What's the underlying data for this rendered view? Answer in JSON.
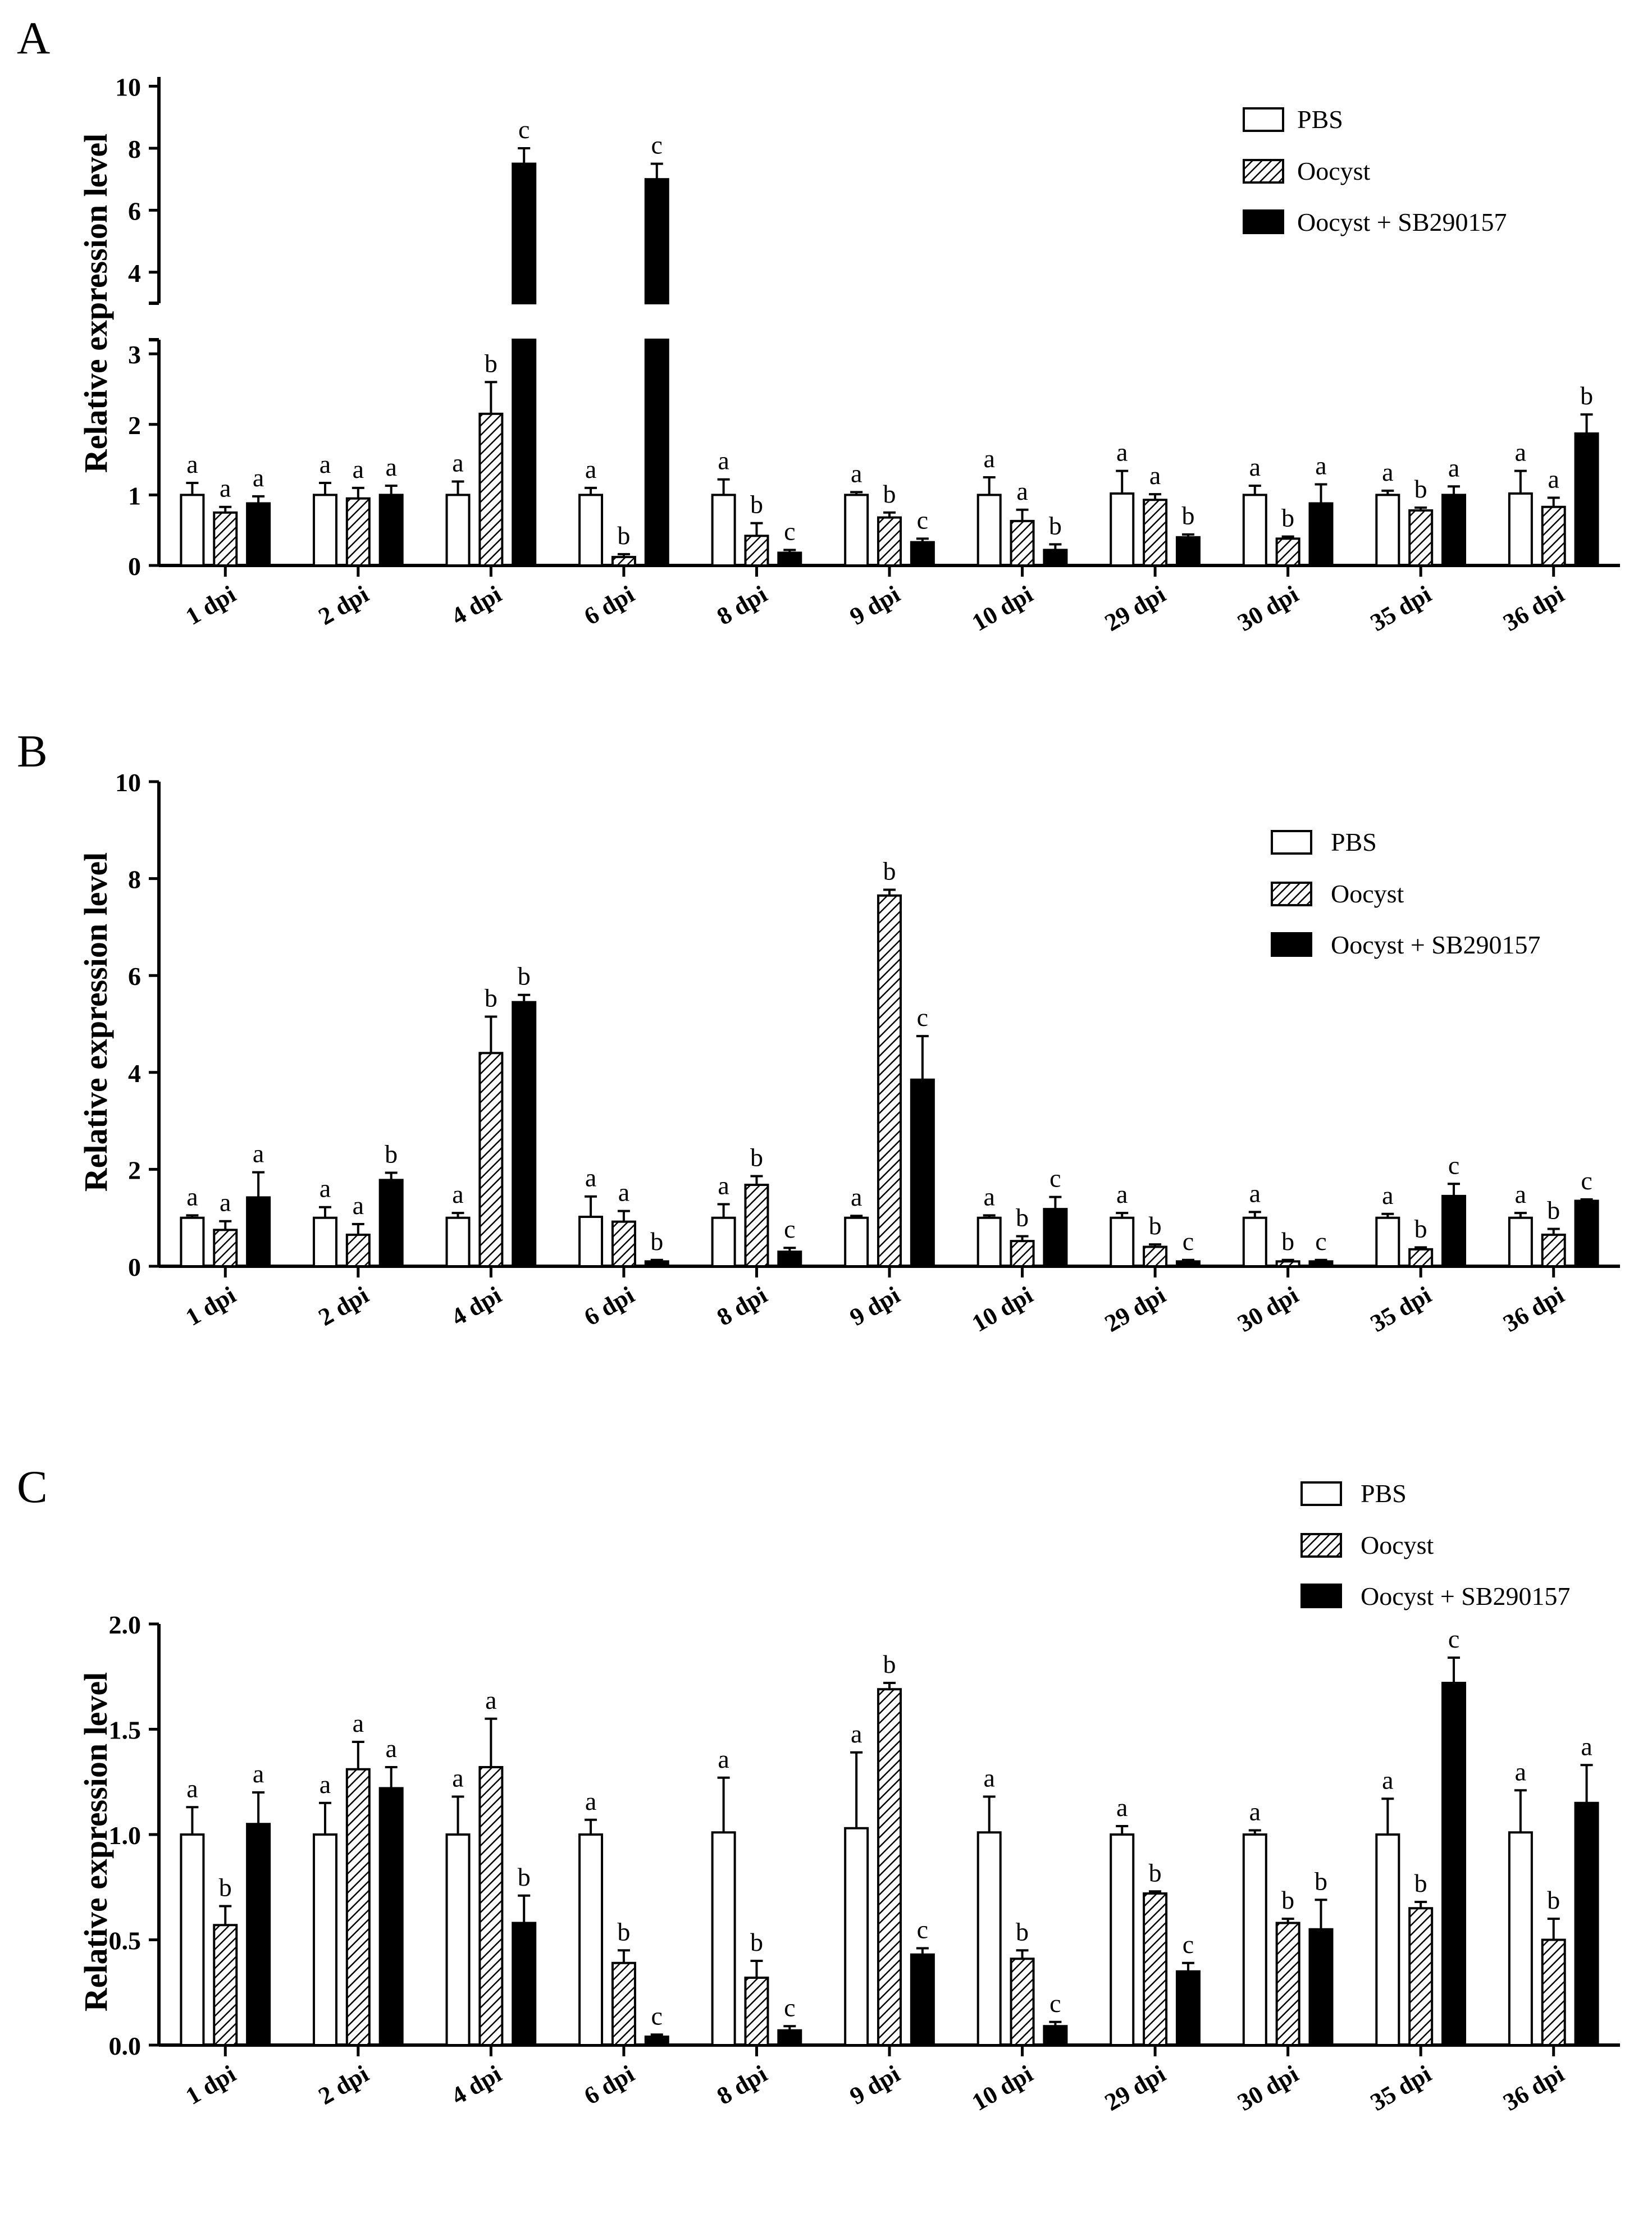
{
  "figure": {
    "ylabel": "Relative expression level",
    "legend": {
      "position": "top-right",
      "entries": [
        {
          "key": "pbs",
          "label": "PBS",
          "style": "open"
        },
        {
          "key": "oocyst",
          "label": "Oocyst",
          "style": "hatched"
        },
        {
          "key": "sb",
          "label": "Oocyst + SB290157",
          "style": "solid"
        }
      ]
    },
    "colors": {
      "stroke": "#000000",
      "fill_solid": "#000000",
      "fill_open": "#ffffff",
      "background": "#ffffff"
    }
  },
  "chart_data": [
    {
      "panel": "A",
      "type": "bar",
      "ylabel": "Relative expression level",
      "broken_axis": true,
      "lower_range": [
        0,
        3.2
      ],
      "upper_range": [
        3.0,
        10.3
      ],
      "lower_ticks": [
        "0",
        "1",
        "2",
        "3"
      ],
      "upper_ticks": [
        "4",
        "6",
        "8",
        "10"
      ],
      "categories": [
        "1 dpi",
        "2 dpi",
        "4 dpi",
        "6 dpi",
        "8 dpi",
        "9 dpi",
        "10 dpi",
        "29 dpi",
        "30 dpi",
        "35 dpi",
        "36 dpi"
      ],
      "series": [
        {
          "name": "PBS",
          "values": [
            1.0,
            1.0,
            1.0,
            1.0,
            1.0,
            1.0,
            1.0,
            1.02,
            1.0,
            1.0,
            1.02
          ],
          "errors": [
            0.17,
            0.17,
            0.19,
            0.1,
            0.22,
            0.04,
            0.25,
            0.32,
            0.13,
            0.06,
            0.32
          ],
          "labels": [
            "a",
            "a",
            "a",
            "a",
            "a",
            "a",
            "a",
            "a",
            "a",
            "a",
            "a"
          ]
        },
        {
          "name": "Oocyst",
          "values": [
            0.75,
            0.95,
            2.15,
            0.12,
            0.42,
            0.68,
            0.63,
            0.93,
            0.38,
            0.78,
            0.83
          ],
          "errors": [
            0.08,
            0.15,
            0.45,
            0.04,
            0.18,
            0.07,
            0.16,
            0.08,
            0.03,
            0.04,
            0.13
          ],
          "labels": [
            "a",
            "a",
            "b",
            "b",
            "b",
            "b",
            "a",
            "a",
            "b",
            "b",
            "a"
          ]
        },
        {
          "name": "Oocyst + SB290157",
          "values": [
            0.88,
            1.0,
            7.5,
            7.0,
            0.18,
            0.33,
            0.22,
            0.4,
            0.88,
            1.0,
            1.87
          ],
          "errors": [
            0.1,
            0.13,
            0.5,
            0.5,
            0.04,
            0.05,
            0.08,
            0.04,
            0.27,
            0.12,
            0.27
          ],
          "labels": [
            "a",
            "a",
            "c",
            "c",
            "c",
            "c",
            "b",
            "b",
            "a",
            "a",
            "b"
          ]
        }
      ]
    },
    {
      "panel": "B",
      "type": "bar",
      "ylabel": "Relative expression level",
      "ylim": [
        0,
        10
      ],
      "yticks": [
        "0",
        "2",
        "4",
        "6",
        "8",
        "10"
      ],
      "categories": [
        "1 dpi",
        "2 dpi",
        "4 dpi",
        "6 dpi",
        "8 dpi",
        "9 dpi",
        "10 dpi",
        "29 dpi",
        "30 dpi",
        "35 dpi",
        "36 dpi"
      ],
      "series": [
        {
          "name": "PBS",
          "values": [
            1.0,
            1.0,
            1.0,
            1.02,
            1.0,
            1.0,
            1.0,
            1.0,
            1.0,
            1.0,
            1.0
          ],
          "errors": [
            0.05,
            0.22,
            0.1,
            0.42,
            0.28,
            0.04,
            0.05,
            0.1,
            0.12,
            0.08,
            0.1
          ],
          "labels": [
            "a",
            "a",
            "a",
            "a",
            "a",
            "a",
            "a",
            "a",
            "a",
            "a",
            "a"
          ]
        },
        {
          "name": "Oocyst",
          "values": [
            0.75,
            0.65,
            4.4,
            0.92,
            1.68,
            7.65,
            0.52,
            0.4,
            0.1,
            0.35,
            0.65
          ],
          "errors": [
            0.18,
            0.22,
            0.75,
            0.22,
            0.18,
            0.12,
            0.1,
            0.05,
            0.03,
            0.04,
            0.12
          ],
          "labels": [
            "a",
            "a",
            "b",
            "a",
            "b",
            "b",
            "b",
            "b",
            "b",
            "b",
            "b"
          ]
        },
        {
          "name": "Oocyst + SB290157",
          "values": [
            1.42,
            1.78,
            5.45,
            0.1,
            0.3,
            3.85,
            1.18,
            0.1,
            0.1,
            1.45,
            1.35
          ],
          "errors": [
            0.52,
            0.15,
            0.15,
            0.03,
            0.08,
            0.9,
            0.25,
            0.03,
            0.03,
            0.25,
            0.03
          ],
          "labels": [
            "a",
            "b",
            "b",
            "b",
            "c",
            "c",
            "c",
            "c",
            "c",
            "c",
            "c"
          ]
        }
      ]
    },
    {
      "panel": "C",
      "type": "bar",
      "ylabel": "Relative expression level",
      "ylim": [
        0,
        2.0
      ],
      "yticks": [
        "0.0",
        "0.5",
        "1.0",
        "1.5",
        "2.0"
      ],
      "categories": [
        "1 dpi",
        "2 dpi",
        "4 dpi",
        "6 dpi",
        "8 dpi",
        "9 dpi",
        "10 dpi",
        "29 dpi",
        "30 dpi",
        "35 dpi",
        "36 dpi"
      ],
      "series": [
        {
          "name": "PBS",
          "values": [
            1.0,
            1.0,
            1.0,
            1.0,
            1.01,
            1.03,
            1.01,
            1.0,
            1.0,
            1.0,
            1.01
          ],
          "errors": [
            0.13,
            0.15,
            0.18,
            0.07,
            0.26,
            0.36,
            0.17,
            0.04,
            0.02,
            0.17,
            0.2
          ],
          "labels": [
            "a",
            "a",
            "a",
            "a",
            "a",
            "a",
            "a",
            "a",
            "a",
            "a",
            "a"
          ]
        },
        {
          "name": "Oocyst",
          "values": [
            0.57,
            1.31,
            1.32,
            0.39,
            0.32,
            1.69,
            0.41,
            0.72,
            0.58,
            0.65,
            0.5
          ],
          "errors": [
            0.09,
            0.13,
            0.23,
            0.06,
            0.08,
            0.03,
            0.04,
            0.01,
            0.02,
            0.03,
            0.1
          ],
          "labels": [
            "b",
            "a",
            "a",
            "b",
            "b",
            "b",
            "b",
            "b",
            "b",
            "b",
            "b"
          ]
        },
        {
          "name": "Oocyst + SB290157",
          "values": [
            1.05,
            1.22,
            0.58,
            0.04,
            0.07,
            0.43,
            0.09,
            0.35,
            0.55,
            1.72,
            1.15
          ],
          "errors": [
            0.15,
            0.1,
            0.13,
            0.01,
            0.02,
            0.03,
            0.02,
            0.04,
            0.14,
            0.12,
            0.18
          ],
          "labels": [
            "a",
            "a",
            "b",
            "c",
            "c",
            "c",
            "c",
            "c",
            "b",
            "c",
            "a"
          ]
        }
      ]
    }
  ]
}
